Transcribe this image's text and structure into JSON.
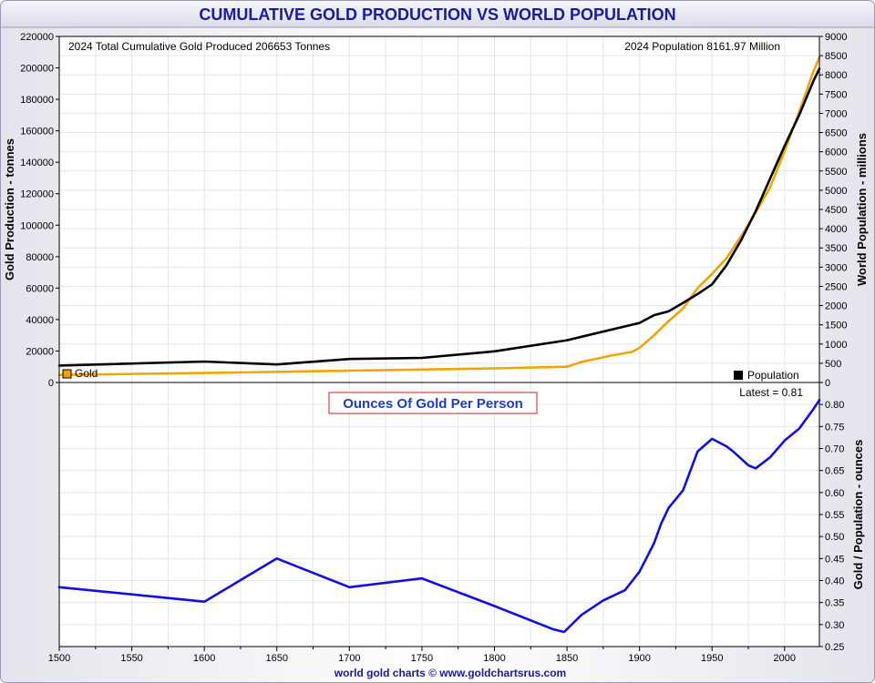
{
  "title": "CUMULATIVE GOLD PRODUCTION VS WORLD POPULATION",
  "footer": "world gold charts © www.goldchartsrus.com",
  "top_left_note": "2024 Total Cumulative Gold Produced 206653  Tonnes",
  "top_right_note": "2024  Population 8161.97 Million",
  "legend_gold": "Gold",
  "legend_population": "Population",
  "latest_label": "Latest = 0.81",
  "lower_title": "Ounces Of Gold Per Person",
  "colors": {
    "gold": "#f0a500",
    "population": "#000000",
    "ratio": "#1010e0",
    "title": "#1a1aa0",
    "frame": "#a0a0c0"
  },
  "chart_data": [
    {
      "type": "line",
      "title": "CUMULATIVE GOLD PRODUCTION VS WORLD POPULATION",
      "xlabel": "",
      "ylabel": "Gold Production - tonnes",
      "y2label": "World Population - millions",
      "xlim": [
        1500,
        2024
      ],
      "ylim": [
        0,
        220000
      ],
      "y2lim": [
        0,
        9000
      ],
      "x_ticks": [
        1500,
        1550,
        1600,
        1650,
        1700,
        1750,
        1800,
        1850,
        1900,
        1950,
        2000
      ],
      "y_ticks": [
        0,
        20000,
        40000,
        60000,
        80000,
        100000,
        120000,
        140000,
        160000,
        180000,
        200000,
        220000
      ],
      "y2_ticks": [
        0,
        500,
        1000,
        1500,
        2000,
        2500,
        3000,
        3500,
        4000,
        4500,
        5000,
        5500,
        6000,
        6500,
        7000,
        7500,
        8000,
        8500,
        9000
      ],
      "grid": true,
      "series": [
        {
          "name": "Gold",
          "axis": "left",
          "x": [
            1500,
            1600,
            1700,
            1800,
            1850,
            1860,
            1880,
            1895,
            1900,
            1910,
            1920,
            1930,
            1940,
            1950,
            1960,
            1970,
            1980,
            1990,
            2000,
            2010,
            2020,
            2024
          ],
          "y": [
            4800,
            6000,
            7500,
            9000,
            10000,
            13000,
            17000,
            19500,
            22000,
            30000,
            39000,
            47000,
            60000,
            69000,
            79000,
            93000,
            108000,
            124000,
            147000,
            172000,
            198000,
            206653
          ]
        },
        {
          "name": "Population",
          "axis": "right",
          "x": [
            1500,
            1600,
            1650,
            1700,
            1750,
            1800,
            1850,
            1900,
            1910,
            1920,
            1930,
            1940,
            1950,
            1960,
            1970,
            1980,
            1990,
            2000,
            2010,
            2020,
            2024
          ],
          "y": [
            440,
            545,
            470,
            610,
            640,
            810,
            1100,
            1550,
            1750,
            1850,
            2070,
            2300,
            2550,
            3050,
            3700,
            4450,
            5300,
            6150,
            6950,
            7850,
            8162
          ]
        }
      ]
    },
    {
      "type": "line",
      "title": "Ounces Of Gold Per Person",
      "xlabel": "",
      "y2label": "Gold / Population - ounces",
      "xlim": [
        1500,
        2024
      ],
      "y2lim": [
        0.25,
        0.85
      ],
      "x_ticks": [
        1500,
        1550,
        1600,
        1650,
        1700,
        1750,
        1800,
        1850,
        1900,
        1950,
        2000
      ],
      "y2_ticks": [
        0.25,
        0.3,
        0.35,
        0.4,
        0.45,
        0.5,
        0.55,
        0.6,
        0.65,
        0.7,
        0.75,
        0.8,
        0.85
      ],
      "grid": true,
      "latest": 0.81,
      "series": [
        {
          "name": "",
          "axis": "right",
          "x": [
            1500,
            1600,
            1650,
            1700,
            1750,
            1800,
            1840,
            1848,
            1860,
            1875,
            1890,
            1900,
            1910,
            1915,
            1920,
            1930,
            1940,
            1950,
            1960,
            1965,
            1975,
            1980,
            1990,
            2000,
            2010,
            2020,
            2024
          ],
          "y": [
            0.385,
            0.352,
            0.45,
            0.385,
            0.405,
            0.342,
            0.29,
            0.283,
            0.322,
            0.355,
            0.378,
            0.42,
            0.485,
            0.53,
            0.565,
            0.605,
            0.693,
            0.722,
            0.705,
            0.692,
            0.662,
            0.655,
            0.68,
            0.718,
            0.745,
            0.79,
            0.81
          ]
        }
      ]
    }
  ]
}
